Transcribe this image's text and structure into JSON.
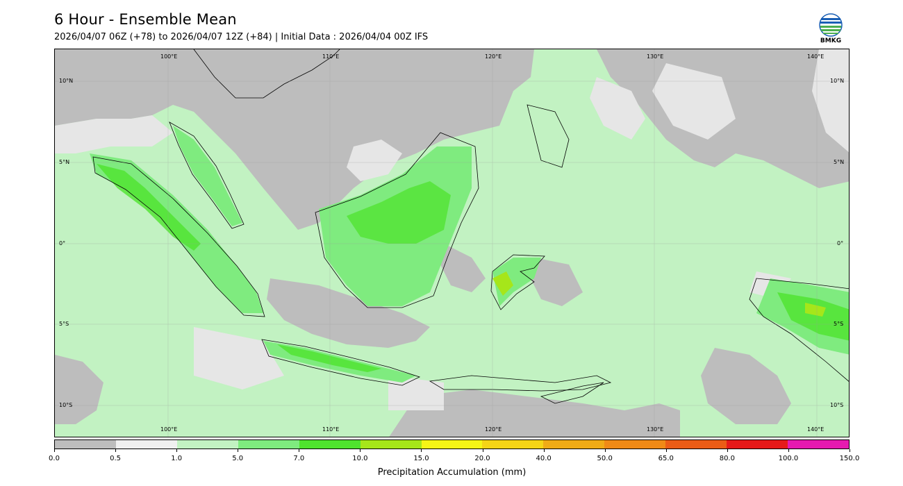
{
  "header": {
    "title": "6 Hour - Ensemble Mean",
    "subtitle": "2026/04/07 06Z (+78) to 2026/04/07 12Z (+84) | Initial Data : 2026/04/04 00Z IFS"
  },
  "logo": {
    "text": "BMKG",
    "icon": "bmkg-logo-icon"
  },
  "map": {
    "lon_labels_top": [
      "100°E",
      "110°E",
      "120°E",
      "130°E",
      "140°E"
    ],
    "lon_labels_bottom": [
      "100°E",
      "110°E",
      "120°E",
      "130°E",
      "140°E"
    ],
    "lat_labels_left": [
      "10°N",
      "5°N",
      "0°",
      "5°S",
      "10°S"
    ],
    "lat_labels_right": [
      "10°N",
      "5°N",
      "0°",
      "5°S",
      "10°S"
    ],
    "colors": {
      "land_dry": "#bdbdbd",
      "very_light": "#e6e6e6",
      "light_green": "#c2f2c2",
      "green": "#7feb7f",
      "bright_green": "#4fe32e",
      "yellow_green": "#a6e61a"
    }
  },
  "colorbar": {
    "label": "Precipitation Accumulation (mm)",
    "ticks": [
      "0.0",
      "0.5",
      "1.0",
      "5.0",
      "7.0",
      "10.0",
      "15.0",
      "20.0",
      "40.0",
      "50.0",
      "65.0",
      "80.0",
      "100.0",
      "150.0"
    ],
    "colors": [
      "#bdbdbd",
      "#f0f0f0",
      "#c2f2c2",
      "#7feb7f",
      "#4fe32e",
      "#a6e61a",
      "#f5f516",
      "#f5d416",
      "#f0ab16",
      "#f08a16",
      "#eb5c16",
      "#e61a1a",
      "#e61ab0"
    ]
  }
}
